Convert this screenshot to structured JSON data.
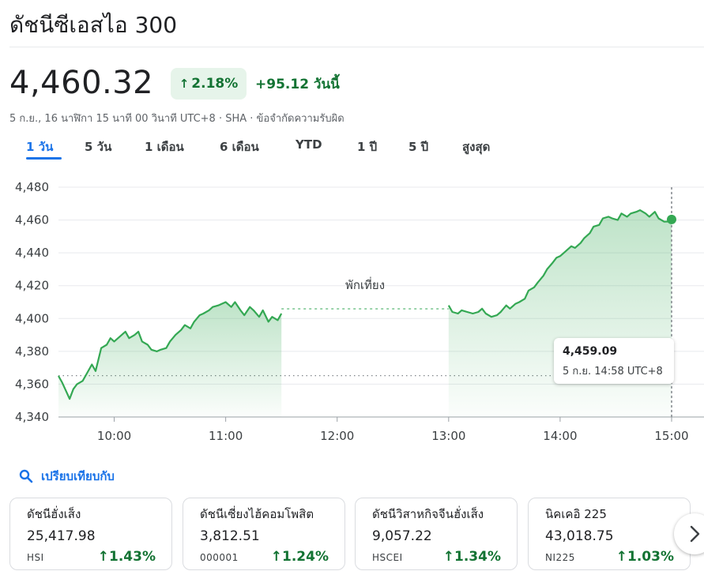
{
  "header": {
    "title": "ดัชนีซีเอสไอ 300",
    "price": "4,460.32",
    "change_pct": "2.18%",
    "change_abs": "+95.12 วันนี้",
    "meta": "5 ก.ย., 16 นาฬิกา 15 นาที 00 วินาที UTC+8 · SHA · ข้อจำกัดความรับผิด"
  },
  "tabs": [
    {
      "label": "1 วัน",
      "active": true
    },
    {
      "label": "5 วัน",
      "active": false
    },
    {
      "label": "1 เดือน",
      "active": false
    },
    {
      "label": "6 เดือน",
      "active": false
    },
    {
      "label": "YTD",
      "active": false
    },
    {
      "label": "1 ปี",
      "active": false
    },
    {
      "label": "5 ปี",
      "active": false
    },
    {
      "label": "สูงสุด",
      "active": false
    }
  ],
  "chart_data": {
    "type": "area",
    "y_ticks": [
      "4,480",
      "4,460",
      "4,440",
      "4,420",
      "4,400",
      "4,380",
      "4,360",
      "4,340"
    ],
    "x_ticks": [
      "10:00",
      "11:00",
      "12:00",
      "13:00",
      "14:00",
      "15:00"
    ],
    "ylim": [
      4340,
      4480
    ],
    "previous_close": 4365.2,
    "break_label": "พักเที่ยง",
    "line_color": "#34a853",
    "morning": [
      [
        "09:30",
        4365
      ],
      [
        "09:32",
        4361
      ],
      [
        "09:34",
        4356
      ],
      [
        "09:36",
        4351
      ],
      [
        "09:38",
        4357
      ],
      [
        "09:40",
        4360
      ],
      [
        "09:43",
        4362
      ],
      [
        "09:45",
        4366
      ],
      [
        "09:48",
        4372
      ],
      [
        "09:50",
        4368
      ],
      [
        "09:53",
        4382
      ],
      [
        "09:56",
        4384
      ],
      [
        "09:58",
        4388
      ],
      [
        "10:00",
        4386
      ],
      [
        "10:03",
        4389
      ],
      [
        "10:06",
        4392
      ],
      [
        "10:08",
        4388
      ],
      [
        "10:11",
        4390
      ],
      [
        "10:13",
        4392
      ],
      [
        "10:15",
        4386
      ],
      [
        "10:18",
        4384
      ],
      [
        "10:20",
        4381
      ],
      [
        "10:23",
        4380
      ],
      [
        "10:25",
        4381
      ],
      [
        "10:28",
        4382
      ],
      [
        "10:30",
        4386
      ],
      [
        "10:33",
        4390
      ],
      [
        "10:36",
        4393
      ],
      [
        "10:38",
        4396
      ],
      [
        "10:41",
        4394
      ],
      [
        "10:43",
        4398
      ],
      [
        "10:46",
        4402
      ],
      [
        "10:48",
        4403
      ],
      [
        "10:51",
        4405
      ],
      [
        "10:53",
        4407
      ],
      [
        "10:56",
        4408
      ],
      [
        "10:58",
        4409
      ],
      [
        "11:00",
        4410
      ],
      [
        "11:03",
        4407
      ],
      [
        "11:05",
        4410
      ],
      [
        "11:08",
        4405
      ],
      [
        "11:10",
        4402
      ],
      [
        "11:13",
        4407
      ],
      [
        "11:15",
        4405
      ],
      [
        "11:18",
        4401
      ],
      [
        "11:20",
        4405
      ],
      [
        "11:23",
        4398
      ],
      [
        "11:25",
        4401
      ],
      [
        "11:28",
        4399
      ],
      [
        "11:30",
        4403
      ]
    ],
    "afternoon": [
      [
        "13:00",
        4408
      ],
      [
        "13:02",
        4404
      ],
      [
        "13:05",
        4403
      ],
      [
        "13:07",
        4405
      ],
      [
        "13:10",
        4404
      ],
      [
        "13:13",
        4403
      ],
      [
        "13:16",
        4404
      ],
      [
        "13:18",
        4406
      ],
      [
        "13:20",
        4403
      ],
      [
        "13:23",
        4401
      ],
      [
        "13:26",
        4402
      ],
      [
        "13:28",
        4404
      ],
      [
        "13:31",
        4408
      ],
      [
        "13:33",
        4406
      ],
      [
        "13:36",
        4409
      ],
      [
        "13:38",
        4410
      ],
      [
        "13:41",
        4412
      ],
      [
        "13:43",
        4417
      ],
      [
        "13:46",
        4419
      ],
      [
        "13:48",
        4422
      ],
      [
        "13:51",
        4426
      ],
      [
        "13:53",
        4430
      ],
      [
        "13:56",
        4434
      ],
      [
        "13:58",
        4437
      ],
      [
        "14:00",
        4438
      ],
      [
        "14:03",
        4441
      ],
      [
        "14:06",
        4444
      ],
      [
        "14:08",
        4443
      ],
      [
        "14:11",
        4446
      ],
      [
        "14:13",
        4449
      ],
      [
        "14:16",
        4452
      ],
      [
        "14:18",
        4456
      ],
      [
        "14:21",
        4457
      ],
      [
        "14:23",
        4461
      ],
      [
        "14:26",
        4462
      ],
      [
        "14:28",
        4461
      ],
      [
        "14:31",
        4460
      ],
      [
        "14:33",
        4464
      ],
      [
        "14:36",
        4462
      ],
      [
        "14:38",
        4464
      ],
      [
        "14:41",
        4465
      ],
      [
        "14:43",
        4466
      ],
      [
        "14:46",
        4464
      ],
      [
        "14:48",
        4462
      ],
      [
        "14:51",
        4465
      ],
      [
        "14:53",
        4461
      ],
      [
        "14:56",
        4459
      ],
      [
        "14:58",
        4459.09
      ],
      [
        "15:00",
        4460.32
      ]
    ],
    "tooltip": {
      "value": "4,459.09",
      "time": "5 ก.ย. 14:58 UTC+8"
    }
  },
  "compare": {
    "label": "เปรียบเทียบกับ",
    "icon": "search-icon"
  },
  "cards": [
    {
      "name": "ดัชนีฮั่งเส็ง",
      "price": "25,417.98",
      "symbol": "HSI",
      "change": "1.43%"
    },
    {
      "name": "ดัชนีเซี่ยงไฮ้คอมโพสิต",
      "price": "3,812.51",
      "symbol": "000001",
      "change": "1.24%"
    },
    {
      "name": "ดัชนีวิสาหกิจจีนฮั่งเส็ง",
      "price": "9,057.22",
      "symbol": "HSCEI",
      "change": "1.34%"
    },
    {
      "name": "นิคเคอิ 225",
      "price": "43,018.75",
      "symbol": "NI225",
      "change": "1.03%"
    }
  ]
}
